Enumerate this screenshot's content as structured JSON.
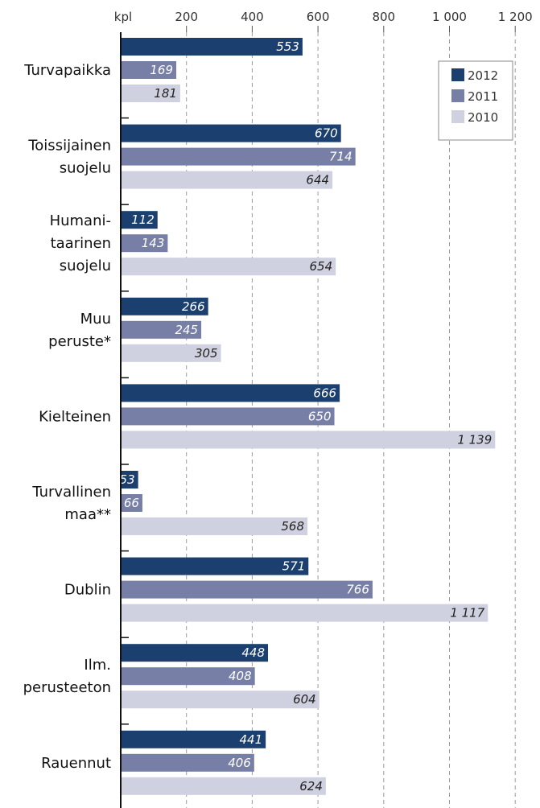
{
  "chart_data": {
    "type": "bar",
    "orientation": "horizontal",
    "unit_label": "kpl",
    "xlim": [
      0,
      1200
    ],
    "x_ticks": [
      {
        "value": 200,
        "label": "200"
      },
      {
        "value": 400,
        "label": "400"
      },
      {
        "value": 600,
        "label": "600"
      },
      {
        "value": 800,
        "label": "800"
      },
      {
        "value": 1000,
        "label": "1 000"
      },
      {
        "value": 1200,
        "label": "1 200"
      }
    ],
    "grid": "vertical-dashed",
    "legend_position": "top-right",
    "categories": [
      [
        "Turvapaikka"
      ],
      [
        "Toissijainen",
        "suojelu"
      ],
      [
        "Humani-",
        "taarinen",
        "suojelu"
      ],
      [
        "Muu",
        "peruste*"
      ],
      [
        "Kielteinen"
      ],
      [
        "Turvallinen",
        "maa**"
      ],
      [
        "Dublin"
      ],
      [
        "Ilm.",
        "perusteeton"
      ],
      [
        "Rauennut"
      ]
    ],
    "series": [
      {
        "name": "2012",
        "color": "#1b3f6e",
        "label_color": "#ffffff",
        "values": [
          553,
          670,
          112,
          266,
          666,
          53,
          571,
          448,
          441
        ],
        "labels": [
          "553",
          "670",
          "112",
          "266",
          "666",
          "53",
          "571",
          "448",
          "441"
        ]
      },
      {
        "name": "2011",
        "color": "#777fa6",
        "label_color": "#ffffff",
        "values": [
          169,
          714,
          143,
          245,
          650,
          66,
          766,
          408,
          406
        ],
        "labels": [
          "169",
          "714",
          "143",
          "245",
          "650",
          "66",
          "766",
          "408",
          "406"
        ]
      },
      {
        "name": "2010",
        "color": "#cfd1e0",
        "label_color": "#222222",
        "values": [
          181,
          644,
          654,
          305,
          1139,
          568,
          1117,
          604,
          624
        ],
        "labels": [
          "181",
          "644",
          "654",
          "305",
          "1 139",
          "568",
          "1 117",
          "604",
          "624"
        ]
      }
    ]
  }
}
